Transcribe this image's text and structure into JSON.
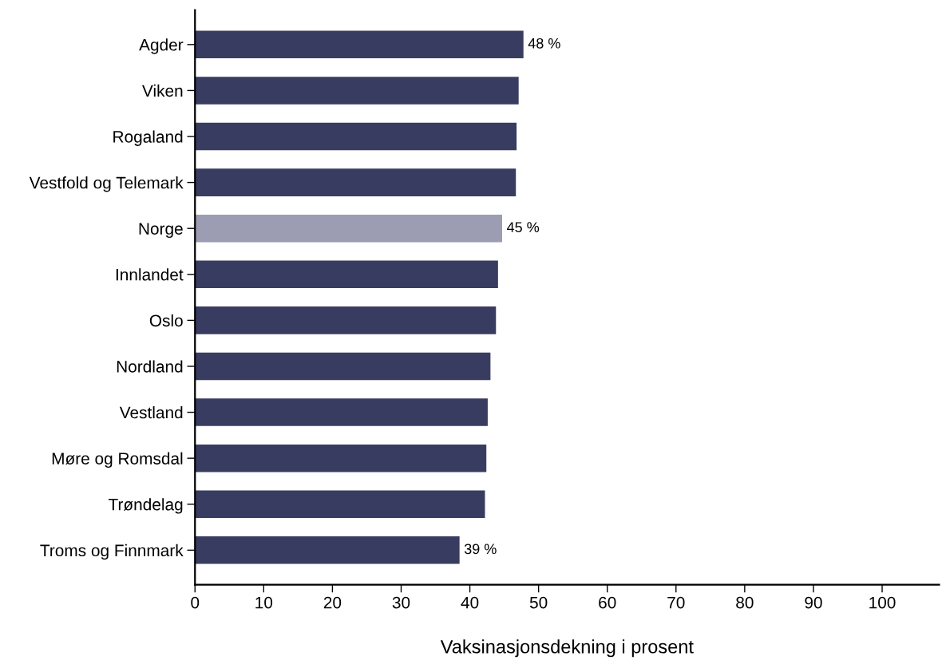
{
  "chart_data": {
    "type": "bar",
    "orientation": "horizontal",
    "xlabel": "Vaksinasjonsdekning i prosent",
    "categories": [
      "Agder",
      "Viken",
      "Rogaland",
      "Vestfold og Telemark",
      "Norge",
      "Innlandet",
      "Oslo",
      "Nordland",
      "Vestland",
      "Møre og Romsdal",
      "Trøndelag",
      "Troms og Finnmark"
    ],
    "values": [
      47.8,
      47.1,
      46.8,
      46.7,
      44.7,
      44.1,
      43.8,
      43.0,
      42.6,
      42.4,
      42.2,
      38.5
    ],
    "colors": [
      "#393c61",
      "#393c61",
      "#393c61",
      "#393c61",
      "#9c9db3",
      "#393c61",
      "#393c61",
      "#393c61",
      "#393c61",
      "#393c61",
      "#393c61",
      "#393c61"
    ],
    "value_labels": [
      "48 %",
      null,
      null,
      null,
      "45 %",
      null,
      null,
      null,
      null,
      null,
      null,
      "39 %"
    ],
    "xlim": [
      0,
      108.3
    ],
    "xticks": [
      0,
      10,
      20,
      30,
      40,
      50,
      60,
      70,
      80,
      90,
      100
    ],
    "grid": false,
    "legend": false
  }
}
